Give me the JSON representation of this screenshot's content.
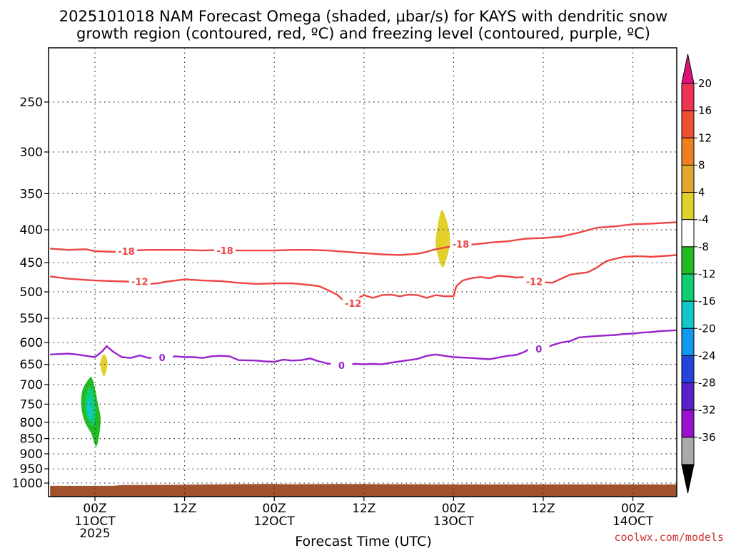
{
  "chart_data": {
    "type": "time-height",
    "title_line1": "2025101018 NAM Forecast Omega (shaded, μbar/s) for KAYS with dendritic snow",
    "title_line2": "growth region (contoured, red, ºC) and freezing level (contoured, purple, ºC)",
    "xlabel": "Forecast Time (UTC)",
    "credit": "coolwx.com/models",
    "xlim_hours": [
      -5,
      65
    ],
    "ylim_hPa": [
      1030,
      200
    ],
    "y_ticks": [
      "250",
      "300",
      "350",
      "400",
      "450",
      "500",
      "550",
      "600",
      "650",
      "700",
      "750",
      "800",
      "850",
      "900",
      "950",
      "1000"
    ],
    "x_ticks": [
      {
        "hour": 0,
        "l1": "00Z",
        "l2": "11OCT",
        "l3": "2025"
      },
      {
        "hour": 10,
        "l1": "12Z",
        "l2": "",
        "l3": ""
      },
      {
        "hour": 20,
        "l1": "00Z",
        "l2": "12OCT",
        "l3": ""
      },
      {
        "hour": 30,
        "l1": "12Z",
        "l2": "",
        "l3": ""
      },
      {
        "hour": 40,
        "l1": "00Z",
        "l2": "13OCT",
        "l3": ""
      },
      {
        "hour": 50,
        "l1": "12Z",
        "l2": "",
        "l3": ""
      },
      {
        "hour": 60,
        "l1": "00Z",
        "l2": "14OCT",
        "l3": ""
      }
    ],
    "colorbar": {
      "labels": [
        "20",
        "16",
        "12",
        "8",
        "4",
        "-4",
        "-8",
        "-12",
        "-16",
        "-20",
        "-24",
        "-28",
        "-32",
        "-36"
      ],
      "colors": [
        "#ee3355",
        "#f05030",
        "#ee8020",
        "#e0a830",
        "#e2d02a",
        "#ffffff",
        "#22bb22",
        "#11cc77",
        "#11c7c7",
        "#1199ee",
        "#2244dd",
        "#5522cc",
        "#9911cc",
        "#aaaaaa"
      ],
      "top_arrow_color": "#dd1177",
      "bottom_arrow_color": "#000000"
    },
    "ground_color": "#a0522d",
    "contours": [
      {
        "name": "minus-18-isotherm",
        "label": "-18",
        "color": "#ee4444",
        "points": [
          [
            -5,
            428
          ],
          [
            -3,
            430
          ],
          [
            -1,
            429
          ],
          [
            0,
            432
          ],
          [
            2,
            433
          ],
          [
            4,
            431
          ],
          [
            6,
            430
          ],
          [
            8,
            430
          ],
          [
            10,
            430
          ],
          [
            12,
            431
          ],
          [
            14,
            430
          ],
          [
            16,
            431
          ],
          [
            18,
            431
          ],
          [
            20,
            431
          ],
          [
            22,
            430
          ],
          [
            24,
            430
          ],
          [
            26,
            431
          ],
          [
            28,
            433
          ],
          [
            30,
            435
          ],
          [
            32,
            437
          ],
          [
            34,
            438
          ],
          [
            36,
            436
          ],
          [
            37,
            433
          ],
          [
            38,
            429
          ],
          [
            40,
            424
          ],
          [
            42,
            422
          ],
          [
            44,
            419
          ],
          [
            46,
            417
          ],
          [
            48,
            413
          ],
          [
            50,
            412
          ],
          [
            52,
            410
          ],
          [
            54,
            404
          ],
          [
            56,
            397
          ],
          [
            58,
            395
          ],
          [
            60,
            392
          ],
          [
            62,
            391
          ],
          [
            65,
            389
          ]
        ],
        "labels": [
          [
            3.5,
            432
          ],
          [
            14.5,
            431
          ],
          [
            40.8,
            421
          ]
        ]
      },
      {
        "name": "minus-12-isotherm",
        "label": "-12",
        "color": "#ee4444",
        "points": [
          [
            -5,
            473
          ],
          [
            -3,
            477
          ],
          [
            -1,
            479
          ],
          [
            0,
            480
          ],
          [
            2,
            481
          ],
          [
            4,
            482
          ],
          [
            5,
            484
          ],
          [
            6,
            486
          ],
          [
            7,
            485
          ],
          [
            8,
            482
          ],
          [
            10,
            478
          ],
          [
            12,
            480
          ],
          [
            14,
            481
          ],
          [
            16,
            484
          ],
          [
            18,
            486
          ],
          [
            20,
            485
          ],
          [
            22,
            485
          ],
          [
            24,
            488
          ],
          [
            25,
            490
          ],
          [
            26,
            497
          ],
          [
            27,
            505
          ],
          [
            28,
            520
          ],
          [
            29,
            515
          ],
          [
            30,
            506
          ],
          [
            31,
            511
          ],
          [
            32,
            506
          ],
          [
            33,
            505
          ],
          [
            34,
            508
          ],
          [
            35,
            505
          ],
          [
            36,
            506
          ],
          [
            37,
            511
          ],
          [
            38,
            506
          ],
          [
            39,
            508
          ],
          [
            40,
            508
          ],
          [
            40.3,
            490
          ],
          [
            41,
            480
          ],
          [
            42,
            476
          ],
          [
            43,
            474
          ],
          [
            44,
            476
          ],
          [
            45,
            472
          ],
          [
            46,
            473
          ],
          [
            47,
            475
          ],
          [
            48,
            474
          ],
          [
            49,
            479
          ],
          [
            50,
            483
          ],
          [
            51,
            484
          ],
          [
            52,
            477
          ],
          [
            53,
            470
          ],
          [
            54,
            468
          ],
          [
            55,
            466
          ],
          [
            56,
            458
          ],
          [
            57,
            448
          ],
          [
            58,
            444
          ],
          [
            59,
            441
          ],
          [
            60,
            440
          ],
          [
            61,
            440
          ],
          [
            62,
            441
          ],
          [
            65,
            438
          ]
        ],
        "labels": [
          [
            5,
            482
          ],
          [
            28.8,
            521
          ],
          [
            49,
            482
          ]
        ]
      },
      {
        "name": "freezing-level",
        "label": "0",
        "color": "#9922cc",
        "points": [
          [
            -5,
            627
          ],
          [
            -4,
            626
          ],
          [
            -3,
            625
          ],
          [
            -2,
            627
          ],
          [
            -1,
            630
          ],
          [
            0,
            633
          ],
          [
            0.8,
            620
          ],
          [
            1.3,
            608
          ],
          [
            2,
            620
          ],
          [
            3,
            633
          ],
          [
            4,
            635
          ],
          [
            5,
            629
          ],
          [
            6,
            635
          ],
          [
            7,
            633
          ],
          [
            8,
            635
          ],
          [
            9,
            631
          ],
          [
            10,
            633
          ],
          [
            11,
            633
          ],
          [
            12,
            635
          ],
          [
            13,
            631
          ],
          [
            14,
            630
          ],
          [
            15,
            631
          ],
          [
            16,
            640
          ],
          [
            18,
            641
          ],
          [
            19,
            643
          ],
          [
            20,
            644
          ],
          [
            21,
            639
          ],
          [
            22,
            641
          ],
          [
            23,
            640
          ],
          [
            24,
            636
          ],
          [
            25,
            643
          ],
          [
            26,
            648
          ],
          [
            27,
            651
          ],
          [
            28,
            651
          ],
          [
            29,
            649
          ],
          [
            30,
            650
          ],
          [
            31,
            649
          ],
          [
            32,
            650
          ],
          [
            33,
            646
          ],
          [
            34,
            643
          ],
          [
            35,
            640
          ],
          [
            36,
            637
          ],
          [
            37,
            630
          ],
          [
            38,
            627
          ],
          [
            39,
            630
          ],
          [
            40,
            633
          ],
          [
            42,
            635
          ],
          [
            44,
            638
          ],
          [
            45,
            634
          ],
          [
            46,
            630
          ],
          [
            47,
            628
          ],
          [
            48,
            620
          ],
          [
            49,
            606
          ],
          [
            50,
            614
          ],
          [
            51,
            606
          ],
          [
            52,
            600
          ],
          [
            53,
            597
          ],
          [
            54,
            589
          ],
          [
            56,
            586
          ],
          [
            58,
            584
          ],
          [
            59,
            582
          ],
          [
            60,
            581
          ],
          [
            61,
            579
          ],
          [
            62,
            578
          ],
          [
            63,
            576
          ],
          [
            65,
            574
          ]
        ],
        "labels": [
          [
            7.5,
            634
          ],
          [
            27.5,
            652
          ],
          [
            49.5,
            614
          ]
        ]
      }
    ],
    "blobs": [
      {
        "name": "omega-yellow-1",
        "fill": "#e2d02a",
        "pts": [
          [
            38.7,
            372
          ],
          [
            38.2,
            396
          ],
          [
            38.0,
            420
          ],
          [
            38.3,
            442
          ],
          [
            38.8,
            458
          ],
          [
            39.3,
            440
          ],
          [
            39.6,
            418
          ],
          [
            39.4,
            395
          ]
        ]
      },
      {
        "name": "omega-yellow-2",
        "fill": "#e2d02a",
        "pts": [
          [
            0.9,
            628
          ],
          [
            0.6,
            645
          ],
          [
            0.7,
            663
          ],
          [
            1.0,
            680
          ],
          [
            1.3,
            662
          ],
          [
            1.4,
            645
          ],
          [
            1.2,
            630
          ]
        ]
      },
      {
        "name": "omega-green",
        "fill": "#22bb22",
        "pts": [
          [
            -0.6,
            683
          ],
          [
            -1.4,
            715
          ],
          [
            -1.5,
            760
          ],
          [
            -1.1,
            800
          ],
          [
            -0.4,
            835
          ],
          [
            0.1,
            875
          ],
          [
            0.4,
            850
          ],
          [
            0.6,
            810
          ],
          [
            0.6,
            780
          ],
          [
            0.3,
            745
          ],
          [
            0.0,
            710
          ],
          [
            -0.3,
            685
          ]
        ]
      },
      {
        "name": "omega-seagreen",
        "fill": "#11cc77",
        "pts": [
          [
            -0.7,
            708
          ],
          [
            -1.1,
            740
          ],
          [
            -1.0,
            775
          ],
          [
            -0.5,
            805
          ],
          [
            -0.1,
            808
          ],
          [
            0.1,
            775
          ],
          [
            0.0,
            740
          ],
          [
            -0.3,
            712
          ]
        ]
      },
      {
        "name": "omega-cyan",
        "fill": "#11c7c7",
        "pts": [
          [
            -0.7,
            735
          ],
          [
            -0.9,
            760
          ],
          [
            -0.7,
            785
          ],
          [
            -0.4,
            790
          ],
          [
            -0.3,
            765
          ],
          [
            -0.5,
            740
          ]
        ]
      }
    ],
    "ground_profile": [
      [
        -5,
        1010
      ],
      [
        0,
        1010
      ],
      [
        2,
        1010
      ],
      [
        3,
        1007
      ],
      [
        10,
        1006
      ],
      [
        15,
        1004
      ],
      [
        19,
        1003
      ],
      [
        22,
        1004
      ],
      [
        27,
        1003
      ],
      [
        35,
        1004
      ],
      [
        40,
        1005
      ],
      [
        50,
        1005
      ],
      [
        58,
        1005
      ],
      [
        65,
        1005
      ]
    ]
  }
}
